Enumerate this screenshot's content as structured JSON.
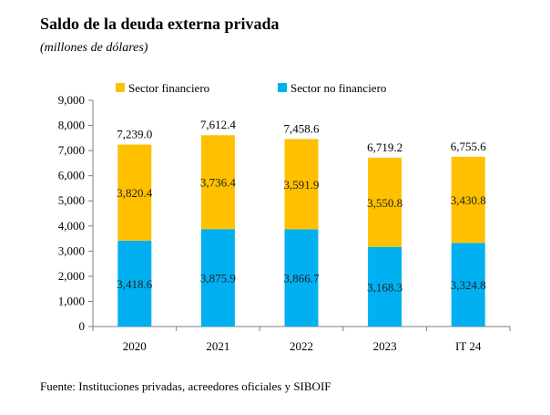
{
  "title": "Saldo de la deuda externa privada",
  "subtitle": "(millones de dólares)",
  "source": "Fuente: Instituciones privadas, acreedores oficiales y SIBOIF",
  "chart_data": {
    "type": "bar",
    "stacked": true,
    "categories": [
      "2020",
      "2021",
      "2022",
      "2023",
      "IT 24"
    ],
    "series": [
      {
        "name": "Sector no financiero",
        "color": "#00B0F0",
        "values": [
          3418.6,
          3875.9,
          3866.7,
          3168.3,
          3324.8
        ],
        "labels": [
          "3,418.6",
          "3,875.9",
          "3,866.7",
          "3,168.3",
          "3,324.8"
        ]
      },
      {
        "name": "Sector financiero",
        "color": "#FFC000",
        "values": [
          3820.4,
          3736.4,
          3591.9,
          3550.8,
          3430.8
        ],
        "labels": [
          "3,820.4",
          "3,736.4",
          "3,591.9",
          "3,550.8",
          "3,430.8"
        ]
      }
    ],
    "totals": [
      7239.0,
      7612.4,
      7458.6,
      6719.2,
      6755.6
    ],
    "total_labels": [
      "7,239.0",
      "7,612.4",
      "7,458.6",
      "6,719.2",
      "6,755.6"
    ],
    "ylim": [
      0,
      9000
    ],
    "yticks": [
      0,
      1000,
      2000,
      3000,
      4000,
      5000,
      6000,
      7000,
      8000,
      9000
    ],
    "ytick_labels": [
      "0",
      "1,000",
      "2,000",
      "3,000",
      "4,000",
      "5,000",
      "6,000",
      "7,000",
      "8,000",
      "9,000"
    ],
    "legend_order": [
      "Sector financiero",
      "Sector no financiero"
    ],
    "legend_position": "top",
    "grid": false
  }
}
